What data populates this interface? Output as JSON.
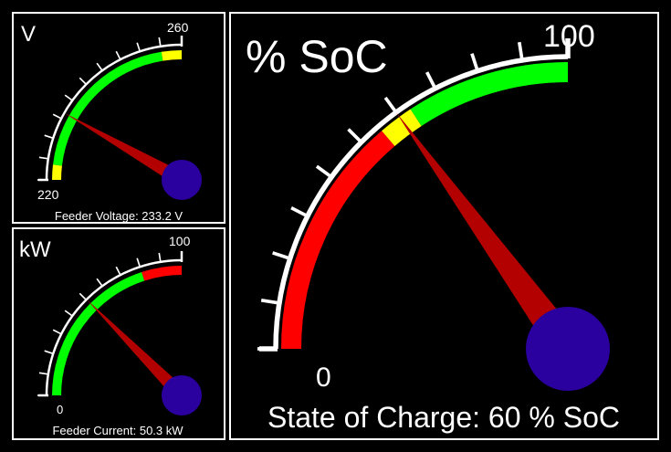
{
  "colors": {
    "background": "#000000",
    "border": "#ffffff",
    "green": "#00ff00",
    "yellow": "#ffff00",
    "red": "#ff0000",
    "needle": "#b30000",
    "hub": "#2a009e"
  },
  "gauges": [
    {
      "id": "voltage",
      "unit_title": "V",
      "min_label": "220",
      "max_label": "260",
      "min": 220,
      "max": 260,
      "value": 233.2,
      "caption": "Feeder Voltage: 233.2 V",
      "bands": [
        {
          "from": 220,
          "to": 223,
          "color": "yellow"
        },
        {
          "from": 223,
          "to": 256,
          "color": "green"
        },
        {
          "from": 256,
          "to": 260,
          "color": "yellow"
        }
      ]
    },
    {
      "id": "power",
      "unit_title": "kW",
      "min_label": "0",
      "max_label": "100",
      "min": 0,
      "max": 100,
      "value": 50.3,
      "caption": "Feeder Current: 50.3 kW",
      "bands": [
        {
          "from": 0,
          "to": 80,
          "color": "green"
        },
        {
          "from": 80,
          "to": 100,
          "color": "red"
        }
      ]
    },
    {
      "id": "soc",
      "unit_title": "% SoC",
      "min_label": "0",
      "max_label": "100",
      "min": 0,
      "max": 100,
      "value": 60,
      "caption": "State of Charge: 60 % SoC",
      "bands": [
        {
          "from": 0,
          "to": 55,
          "color": "red"
        },
        {
          "from": 55,
          "to": 63,
          "color": "yellow"
        },
        {
          "from": 63,
          "to": 100,
          "color": "green"
        }
      ]
    }
  ]
}
